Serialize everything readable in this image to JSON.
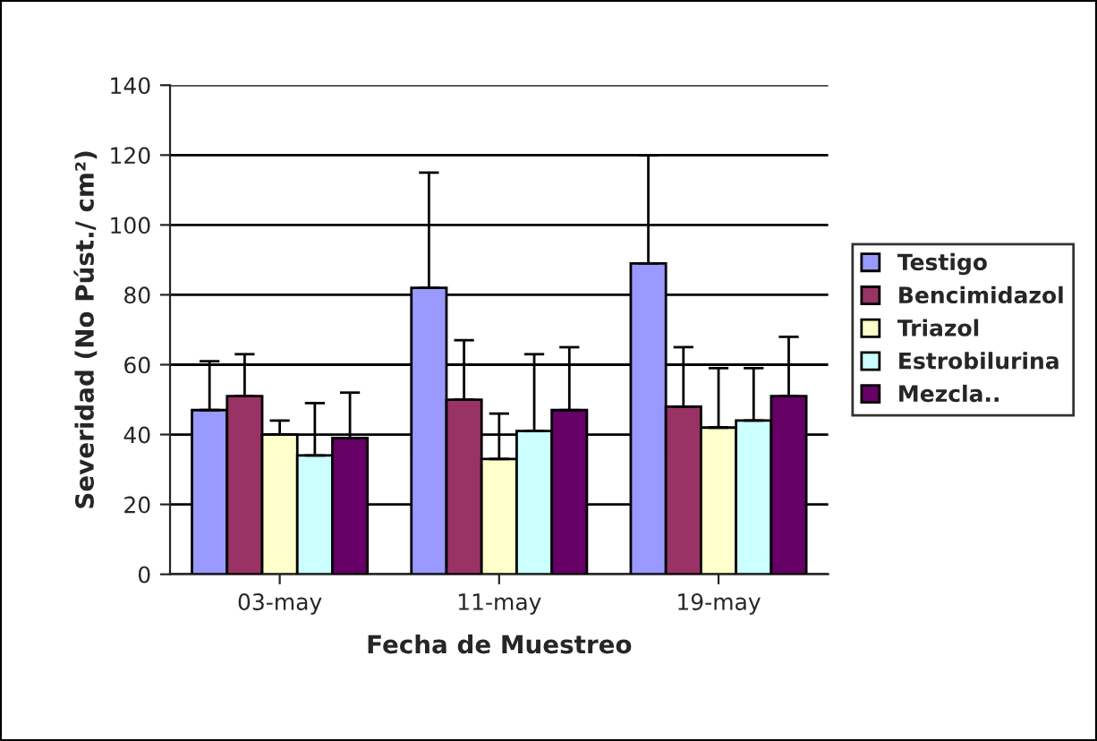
{
  "chart_data": {
    "type": "bar",
    "xlabel": "Fecha de Muestreo",
    "ylabel": "Severidad (No Púst./ cm²)",
    "categories": [
      "03-may",
      "11-may",
      "19-may"
    ],
    "series": [
      {
        "name": "Testigo",
        "color": "#9999ff",
        "values": [
          47,
          82,
          89
        ],
        "errors": [
          [
            47,
            61
          ],
          [
            82,
            115
          ],
          [
            89,
            120
          ]
        ]
      },
      {
        "name": "Bencimidazol",
        "color": "#993366",
        "values": [
          51,
          50,
          48
        ],
        "errors": [
          [
            51,
            63
          ],
          [
            50,
            67
          ],
          [
            48,
            65
          ]
        ]
      },
      {
        "name": "Triazol",
        "color": "#ffffcc",
        "values": [
          40,
          33,
          42
        ],
        "errors": [
          [
            40,
            44
          ],
          [
            33,
            46
          ],
          [
            42,
            59
          ]
        ]
      },
      {
        "name": "Estrobilurina",
        "color": "#ccffff",
        "values": [
          34,
          41,
          44
        ],
        "errors": [
          [
            34,
            49
          ],
          [
            41,
            63
          ],
          [
            44,
            59
          ]
        ]
      },
      {
        "name": "Mezcla..",
        "color": "#660066",
        "values": [
          39,
          47,
          51
        ],
        "errors": [
          [
            39,
            52
          ],
          [
            47,
            65
          ],
          [
            51,
            68
          ]
        ]
      }
    ],
    "ylim": [
      0,
      140
    ],
    "yticks": [
      0,
      20,
      40,
      60,
      80,
      100,
      120,
      140
    ],
    "grid": "y",
    "legend": "right"
  }
}
